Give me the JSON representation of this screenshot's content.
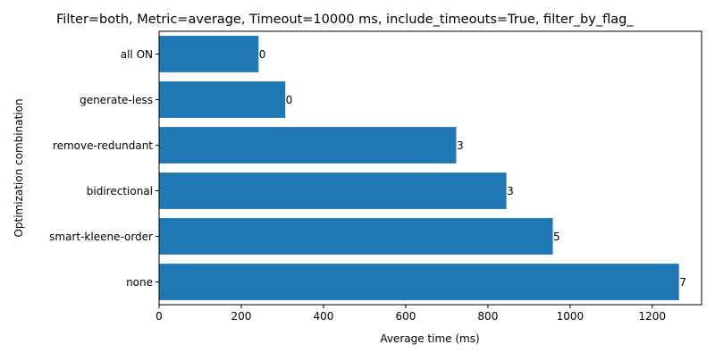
{
  "chart_data": {
    "type": "bar",
    "orientation": "horizontal",
    "title": "Filter=both, Metric=average, Timeout=10000 ms, include_timeouts=True, filter_by_flag_",
    "xlabel": "Average time (ms)",
    "ylabel": "Optimization combination",
    "categories": [
      "none",
      "smart-kleene-order",
      "bidirectional",
      "remove-redundant",
      "generate-less",
      "all ON"
    ],
    "values": [
      1265,
      958,
      845,
      723,
      307,
      242
    ],
    "bar_labels": [
      "7",
      "5",
      "3",
      "3",
      "0",
      "0"
    ],
    "xlim": [
      0,
      1320
    ],
    "xticks": [
      0,
      200,
      400,
      600,
      800,
      1000,
      1200
    ],
    "xtick_labels": [
      "0",
      "200",
      "400",
      "600",
      "800",
      "1000",
      "1200"
    ],
    "grid": false,
    "bar_color": "#1f77b4"
  }
}
